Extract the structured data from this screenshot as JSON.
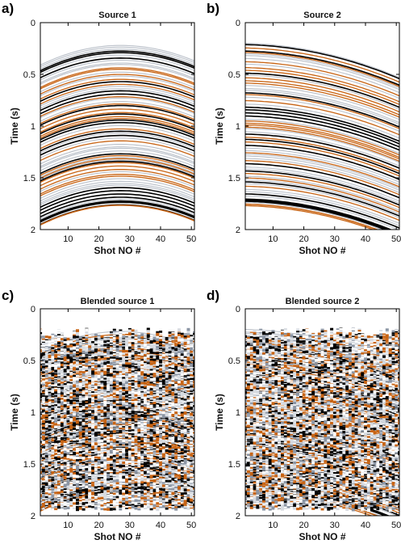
{
  "chart_data": [
    {
      "type": "heatmap",
      "panel_label": "a)",
      "title": "Source 1",
      "xlabel": "Shot NO #",
      "ylabel": "Time (s)",
      "xlim": [
        1,
        51
      ],
      "ylim": [
        0,
        2
      ],
      "y_reversed": true,
      "x_ticks": [
        "10",
        "20",
        "30",
        "40",
        "50"
      ],
      "y_ticks": [
        "0",
        "0.5",
        "1",
        "1.5",
        "2"
      ],
      "blended": false,
      "moveout_shape": "arc",
      "moveout_apex_shot": 27,
      "moveout_edge_delay_s": [
        0.19,
        0.15
      ],
      "first_event_time_s": 0.22,
      "last_event_time_s": 1.78,
      "strongest_event_time_s": 1.73,
      "colors": {
        "strong": "#000000",
        "mid": "#c86414",
        "weak": "#8c96a5"
      }
    },
    {
      "type": "heatmap",
      "panel_label": "b)",
      "title": "Source 2",
      "xlabel": "Shot NO #",
      "ylabel": "Time (s)",
      "xlim": [
        1,
        51
      ],
      "ylim": [
        0,
        2
      ],
      "y_reversed": true,
      "x_ticks": [
        "10",
        "20",
        "30",
        "40",
        "50"
      ],
      "y_ticks": [
        "0",
        "0.5",
        "1",
        "1.5",
        "2"
      ],
      "blended": false,
      "moveout_shape": "ramp",
      "moveout_edge_delay_s": [
        0.0,
        0.33
      ],
      "first_event_time_s": 0.2,
      "last_event_time_s": 1.78,
      "strongest_event_time_s": 1.72,
      "colors": {
        "strong": "#000000",
        "mid": "#c86414",
        "weak": "#8c96a5"
      }
    },
    {
      "type": "heatmap",
      "panel_label": "c)",
      "title": "Blended source 1",
      "xlabel": "Shot NO #",
      "ylabel": "Time (s)",
      "xlim": [
        1,
        51
      ],
      "ylim": [
        0,
        2
      ],
      "y_reversed": true,
      "x_ticks": [
        "10",
        "20",
        "30",
        "40",
        "50"
      ],
      "y_ticks": [
        "0",
        "0.5",
        "1",
        "1.5",
        "2"
      ],
      "blended": true,
      "moveout_shape": "arc",
      "moveout_apex_shot": 27,
      "moveout_edge_delay_s": [
        0.19,
        0.15
      ],
      "first_event_time_s": 0.22,
      "last_event_time_s": 1.78,
      "strongest_event_time_s": 1.73,
      "colors": {
        "strong": "#000000",
        "mid": "#c86414",
        "weak": "#8c96a5"
      }
    },
    {
      "type": "heatmap",
      "panel_label": "d)",
      "title": "Blended source 2",
      "xlabel": "Shot NO #",
      "ylabel": "Time (s)",
      "xlim": [
        1,
        51
      ],
      "ylim": [
        0,
        2
      ],
      "y_reversed": true,
      "x_ticks": [
        "10",
        "20",
        "30",
        "40",
        "50"
      ],
      "y_ticks": [
        "0",
        "0.5",
        "1",
        "1.5",
        "2"
      ],
      "blended": true,
      "moveout_shape": "ramp",
      "moveout_edge_delay_s": [
        0.0,
        0.33
      ],
      "first_event_time_s": 0.2,
      "last_event_time_s": 1.78,
      "strongest_event_time_s": 1.72,
      "colors": {
        "strong": "#000000",
        "mid": "#c86414",
        "weak": "#8c96a5"
      }
    }
  ]
}
